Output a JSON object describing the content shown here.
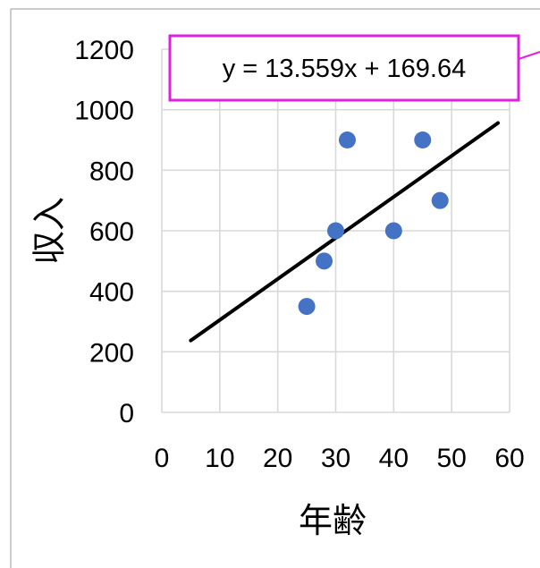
{
  "chart_data": {
    "type": "scatter",
    "xlabel": "年齢",
    "ylabel": "収入",
    "xlim": [
      0,
      60
    ],
    "ylim": [
      0,
      1200
    ],
    "x_ticks": [
      "0",
      "10",
      "20",
      "30",
      "40",
      "50",
      "60"
    ],
    "y_ticks": [
      "0",
      "200",
      "400",
      "600",
      "800",
      "1000",
      "1200"
    ],
    "grid": true,
    "series": [
      {
        "points": [
          {
            "x": 25,
            "y": 350
          },
          {
            "x": 28,
            "y": 500
          },
          {
            "x": 30,
            "y": 600
          },
          {
            "x": 32,
            "y": 900
          },
          {
            "x": 40,
            "y": 600
          },
          {
            "x": 45,
            "y": 900
          },
          {
            "x": 48,
            "y": 700
          }
        ],
        "color": "#4472C4"
      }
    ],
    "trendline": {
      "slope": 13.559,
      "intercept": 169.64,
      "x_range": [
        5,
        58
      ],
      "color": "#000000",
      "equation_label": "y = 13.559x + 169.64",
      "label_border_color": "#E020E0"
    }
  }
}
